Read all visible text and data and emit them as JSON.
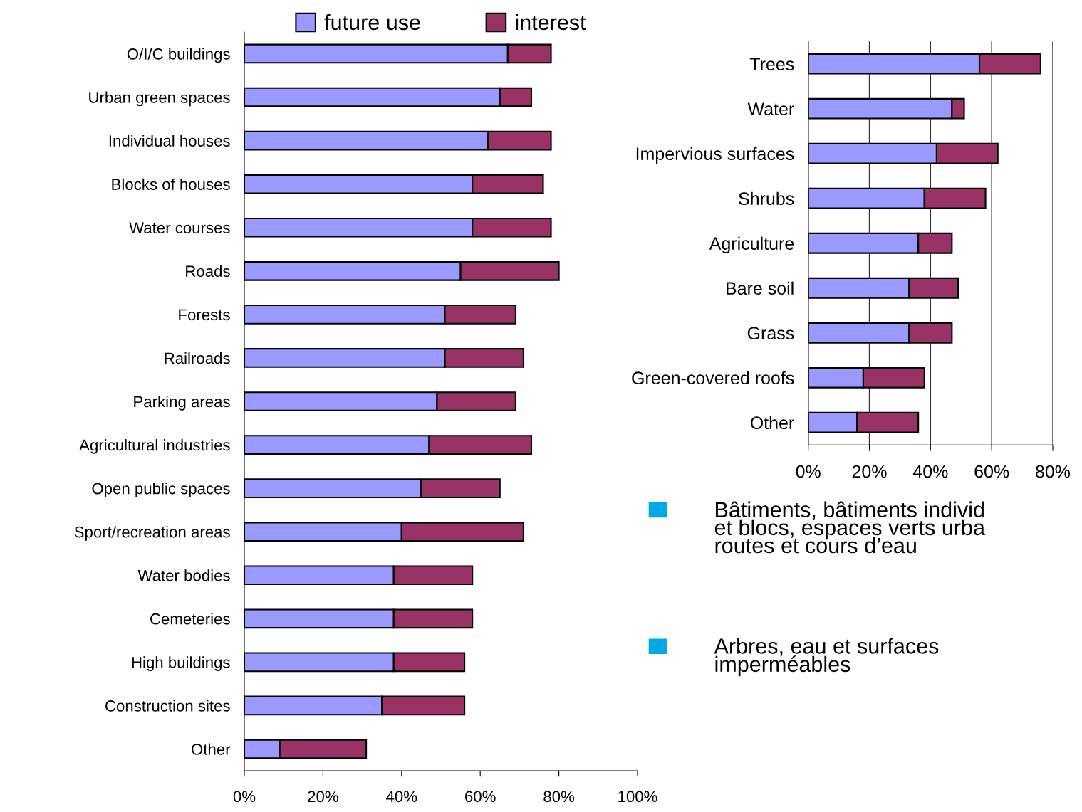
{
  "chart_data": [
    {
      "type": "bar",
      "orientation": "horizontal",
      "stacked": true,
      "categories": [
        "O/I/C buildings",
        "Urban green spaces",
        "Individual houses",
        "Blocks of houses",
        "Water courses",
        "Roads",
        "Forests",
        "Railroads",
        "Parking areas",
        "Agricultural industries",
        "Open public spaces",
        "Sport/recreation areas",
        "Water bodies",
        "Cemeteries",
        "High buildings",
        "Construction sites",
        "Other"
      ],
      "series": [
        {
          "name": "future use",
          "color": "#9999ff",
          "values": [
            67,
            65,
            62,
            58,
            58,
            55,
            51,
            51,
            49,
            47,
            45,
            40,
            38,
            38,
            38,
            35,
            9
          ]
        },
        {
          "name": "interest",
          "color": "#993366",
          "values": [
            11,
            8,
            16,
            18,
            20,
            25,
            18,
            20,
            20,
            26,
            20,
            31,
            20,
            20,
            18,
            21,
            22
          ]
        }
      ],
      "xlim": [
        0,
        100
      ],
      "xticks": [
        {
          "value": 0,
          "label": "0%"
        },
        {
          "value": 20,
          "label": "20%"
        },
        {
          "value": 40,
          "label": "40%"
        },
        {
          "value": 60,
          "label": "60%"
        },
        {
          "value": 80,
          "label": "80%"
        },
        {
          "value": 100,
          "label": "100%"
        }
      ],
      "grid": false,
      "legend": "top"
    },
    {
      "type": "bar",
      "orientation": "horizontal",
      "stacked": true,
      "categories": [
        "Trees",
        "Water",
        "Impervious surfaces",
        "Shrubs",
        "Agriculture",
        "Bare soil",
        "Grass",
        "Green-covered roofs",
        "Other"
      ],
      "series": [
        {
          "color": "#9999ff",
          "values": [
            56,
            47,
            42,
            38,
            36,
            33,
            33,
            18,
            16
          ]
        },
        {
          "color": "#993366",
          "values": [
            20,
            4,
            20,
            20,
            11,
            16,
            14,
            20,
            20
          ]
        }
      ],
      "xlim": [
        0,
        80
      ],
      "xticks": [
        {
          "value": 0,
          "label": "0%"
        },
        {
          "value": 20,
          "label": "20%"
        },
        {
          "value": 40,
          "label": "40%"
        },
        {
          "value": 60,
          "label": "60%"
        },
        {
          "value": 80,
          "label": "80%"
        }
      ],
      "grid": "x"
    },
    {
      "type": "other",
      "annotations": [
        "Bâtiments, bâtiments individ\net blocs, espaces verts urba\nroutes et cours d’eau",
        "Arbres, eau et surfaces\nimperméables"
      ]
    }
  ]
}
